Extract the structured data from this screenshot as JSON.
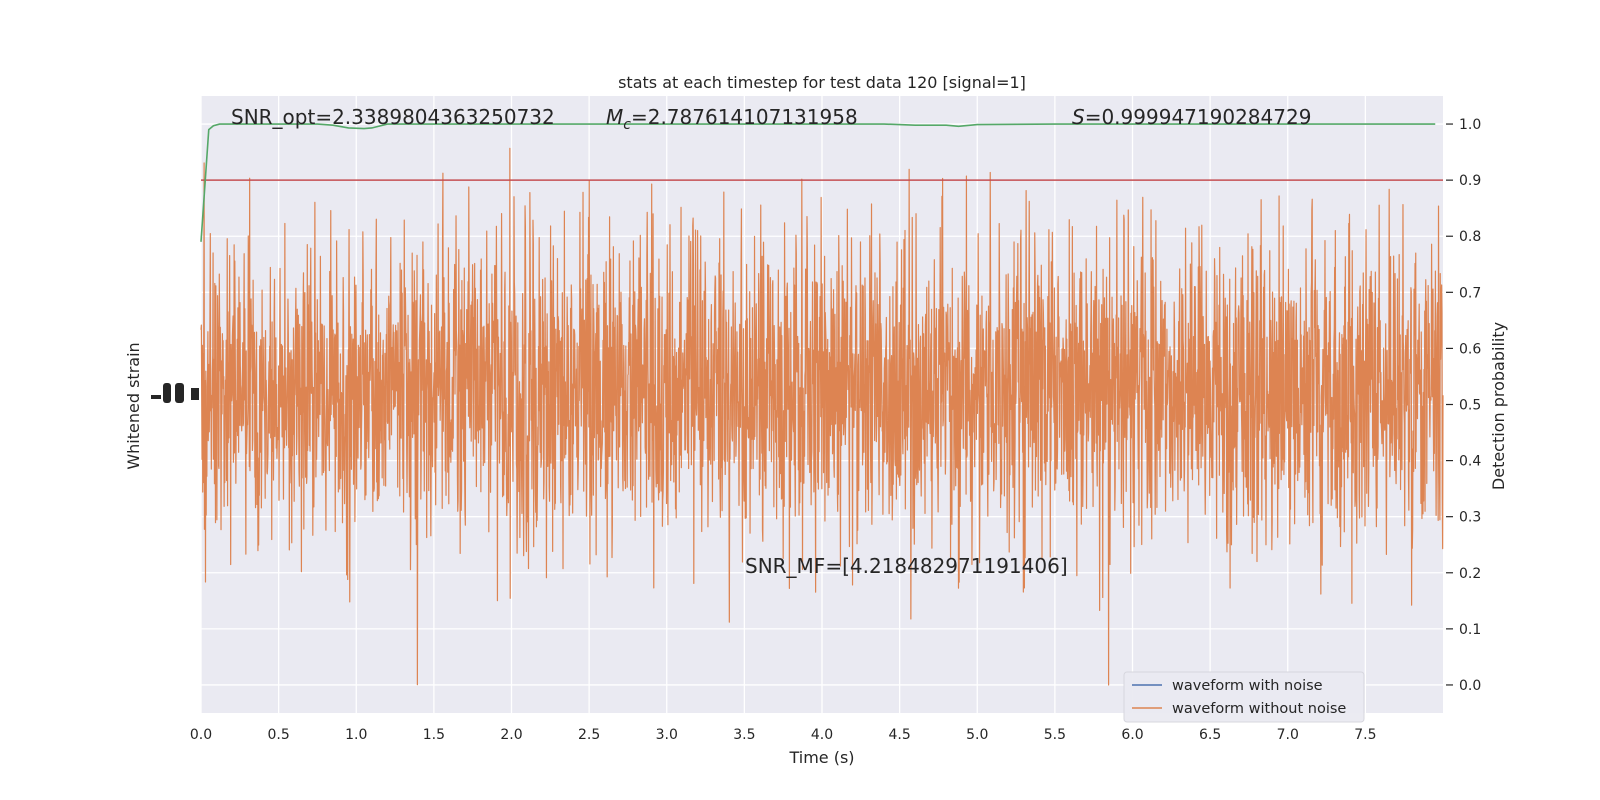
{
  "chart_data": {
    "type": "line",
    "title": "stats at each timestep for test data 120 [signal=1]",
    "xlabel": "Time (s)",
    "ylabel_left": "Whitened strain",
    "ylabel_right": "Detection probability",
    "xlim": [
      0.0,
      8.0
    ],
    "ylim_right": [
      -0.05,
      1.05
    ],
    "x_ticks": [
      "0.0",
      "0.5",
      "1.0",
      "1.5",
      "2.0",
      "2.5",
      "3.0",
      "3.5",
      "4.0",
      "4.5",
      "5.0",
      "5.5",
      "6.0",
      "6.5",
      "7.0",
      "7.5"
    ],
    "x_tick_values": [
      0.0,
      0.5,
      1.0,
      1.5,
      2.0,
      2.5,
      3.0,
      3.5,
      4.0,
      4.5,
      5.0,
      5.5,
      6.0,
      6.5,
      7.0,
      7.5
    ],
    "y_right_ticks": [
      "0.0",
      "0.1",
      "0.2",
      "0.3",
      "0.4",
      "0.5",
      "0.6",
      "0.7",
      "0.8",
      "0.9",
      "1.0"
    ],
    "y_right_tick_values": [
      0.0,
      0.1,
      0.2,
      0.3,
      0.4,
      0.5,
      0.6,
      0.7,
      0.8,
      0.9,
      1.0
    ],
    "grid": true,
    "legend_position": "lower-right",
    "legend": [
      {
        "label": "waveform with noise",
        "color": "#4c72b0"
      },
      {
        "label": "waveform without noise",
        "color": "#dd8452"
      }
    ],
    "annotations": {
      "snr_opt": "SNR_opt=2.3389804363250732",
      "mc_symbol": "M",
      "mc_sub": "c",
      "mc_value": "=2.787614107131958",
      "s_symbol": "S",
      "s_value": "=0.999947190284729",
      "snr_mf": "SNR_MF=[4.218482971191406]"
    },
    "threshold": {
      "value": 0.9,
      "color": "#c44e52"
    },
    "detection_probability": {
      "color": "#55a868",
      "x": [
        0.0,
        0.05,
        0.08,
        0.12,
        0.2,
        0.5,
        0.75,
        0.85,
        0.95,
        1.05,
        1.1,
        1.2,
        1.5,
        2.0,
        2.5,
        3.0,
        3.5,
        4.0,
        4.4,
        4.6,
        4.8,
        4.88,
        5.0,
        5.5,
        6.0,
        6.5,
        7.0,
        7.5,
        7.95
      ],
      "y": [
        0.79,
        0.99,
        0.997,
        1.0,
        1.0,
        1.0,
        1.0,
        0.998,
        0.993,
        0.992,
        0.993,
        1.0,
        1.0,
        1.0,
        1.0,
        1.0,
        1.0,
        1.0,
        1.0,
        0.998,
        0.998,
        0.996,
        0.999,
        1.0,
        1.0,
        1.0,
        1.0,
        1.0,
        1.0
      ]
    },
    "waveform_without_noise": {
      "color": "#dd8452",
      "duration_s": 8.0,
      "band_low": 0.35,
      "band_high": 0.7,
      "min": 0.0,
      "max": 1.0
    },
    "waveform_with_noise": {
      "color": "#4c72b0"
    }
  }
}
